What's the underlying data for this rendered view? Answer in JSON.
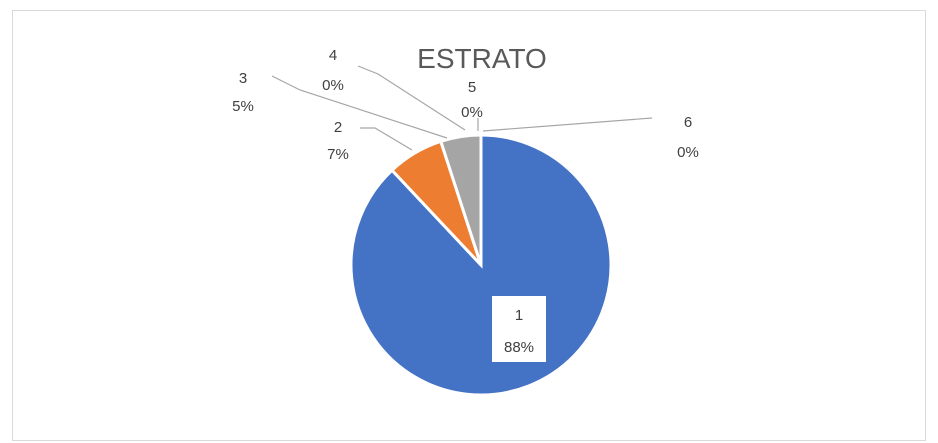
{
  "chart_data": {
    "type": "pie",
    "title": "ESTRATO",
    "slices": [
      {
        "label": "1",
        "value": 88,
        "percent_label": "88%",
        "color": "#4472c4"
      },
      {
        "label": "2",
        "value": 7,
        "percent_label": "7%",
        "color": "#ed7d31"
      },
      {
        "label": "3",
        "value": 5,
        "percent_label": "5%",
        "color": "#a5a5a5"
      },
      {
        "label": "4",
        "value": 0,
        "percent_label": "0%",
        "color": "#ffc000"
      },
      {
        "label": "5",
        "value": 0,
        "percent_label": "0%",
        "color": "#5b9bd5"
      },
      {
        "label": "6",
        "value": 0,
        "percent_label": "0%",
        "color": "#70ad47"
      }
    ],
    "legend": "none",
    "data_labels": "category and percentage"
  }
}
